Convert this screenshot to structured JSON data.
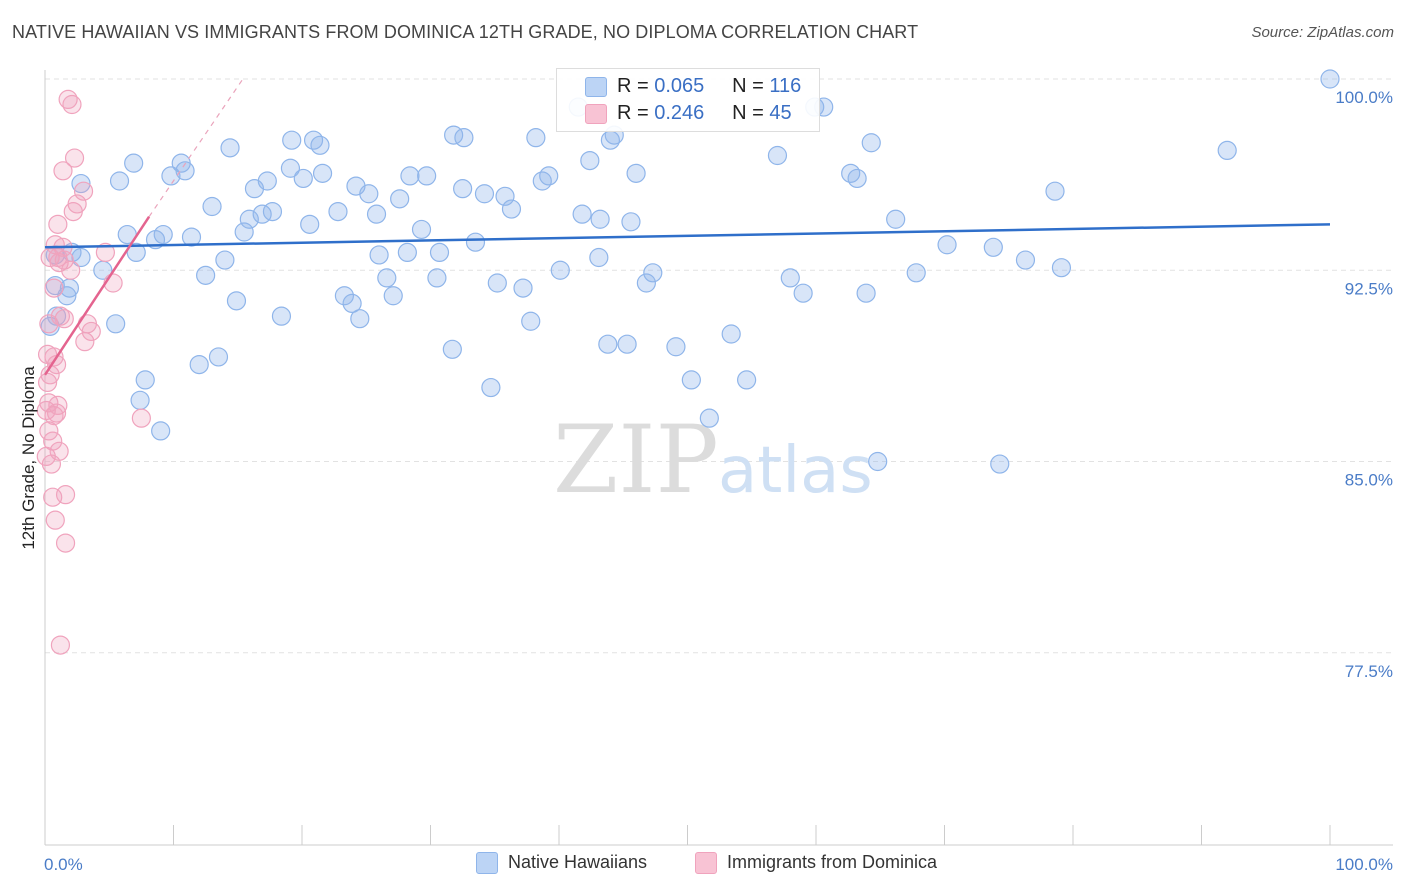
{
  "title": "NATIVE HAWAIIAN VS IMMIGRANTS FROM DOMINICA 12TH GRADE, NO DIPLOMA CORRELATION CHART",
  "source": "Source: ZipAtlas.com",
  "colors": {
    "blue": "#8fb5ea",
    "blue_line": "#2f6fca",
    "pink": "#f0a3bd",
    "pink_line": "#e4648f",
    "axis_text": "#4a7cc7"
  },
  "watermark": {
    "zip": "ZIP",
    "atlas": "atlas"
  },
  "legend": {
    "r_label": "R =",
    "n_label": "N =",
    "blue": {
      "r": "0.065",
      "n": "116"
    },
    "pink": {
      "r": "0.246",
      "n": "45"
    }
  },
  "bottom_legend": {
    "blue": "Native Hawaiians",
    "pink": "Immigrants from Dominica"
  },
  "chart_data": {
    "type": "scatter",
    "title": "NATIVE HAWAIIAN VS IMMIGRANTS FROM DOMINICA 12TH GRADE, NO DIPLOMA CORRELATION CHART",
    "xlabel": "",
    "ylabel": "12th Grade, No Diploma",
    "xlim": [
      0,
      100
    ],
    "ylim": [
      71,
      101
    ],
    "x_tick_labels": [
      "0.0%",
      "100.0%"
    ],
    "y_ticks": [
      100,
      92.5,
      85,
      77.5
    ],
    "y_tick_labels": [
      "100.0%",
      "92.5%",
      "85.0%",
      "77.5%"
    ],
    "grid": true,
    "series": [
      {
        "name": "Native Hawaiians",
        "r": 0.065,
        "n": 116,
        "trend": {
          "x": [
            0,
            100
          ],
          "y": [
            93.4,
            94.3
          ]
        },
        "points": [
          [
            0.4,
            90.3
          ],
          [
            0.8,
            93.1
          ],
          [
            0.8,
            91.9
          ],
          [
            0.9,
            90.7
          ],
          [
            1.7,
            91.5
          ],
          [
            1.9,
            91.8
          ],
          [
            2.1,
            93.2
          ],
          [
            2.8,
            95.9
          ],
          [
            2.8,
            93.0
          ],
          [
            4.5,
            92.5
          ],
          [
            5.5,
            90.4
          ],
          [
            5.8,
            96.0
          ],
          [
            6.4,
            93.9
          ],
          [
            6.9,
            96.7
          ],
          [
            7.1,
            93.2
          ],
          [
            7.4,
            87.4
          ],
          [
            7.8,
            88.2
          ],
          [
            8.6,
            93.7
          ],
          [
            9.0,
            86.2
          ],
          [
            9.2,
            93.9
          ],
          [
            9.8,
            96.2
          ],
          [
            10.6,
            96.7
          ],
          [
            10.9,
            96.4
          ],
          [
            11.4,
            93.8
          ],
          [
            12.0,
            88.8
          ],
          [
            12.5,
            92.3
          ],
          [
            13.0,
            95.0
          ],
          [
            13.5,
            89.1
          ],
          [
            14.0,
            92.9
          ],
          [
            14.4,
            97.3
          ],
          [
            14.9,
            91.3
          ],
          [
            15.5,
            94.0
          ],
          [
            15.9,
            94.5
          ],
          [
            16.3,
            95.7
          ],
          [
            16.9,
            94.7
          ],
          [
            17.3,
            96.0
          ],
          [
            17.7,
            94.8
          ],
          [
            18.4,
            90.7
          ],
          [
            19.1,
            96.5
          ],
          [
            19.2,
            97.6
          ],
          [
            20.1,
            96.1
          ],
          [
            20.6,
            94.3
          ],
          [
            20.9,
            97.6
          ],
          [
            21.4,
            97.4
          ],
          [
            21.6,
            96.3
          ],
          [
            22.8,
            94.8
          ],
          [
            23.3,
            91.5
          ],
          [
            23.9,
            91.2
          ],
          [
            24.2,
            95.8
          ],
          [
            24.5,
            90.6
          ],
          [
            25.2,
            95.5
          ],
          [
            25.8,
            94.7
          ],
          [
            26.0,
            93.1
          ],
          [
            26.6,
            92.2
          ],
          [
            27.1,
            91.5
          ],
          [
            27.6,
            95.3
          ],
          [
            28.2,
            93.2
          ],
          [
            28.4,
            96.2
          ],
          [
            29.3,
            94.1
          ],
          [
            29.7,
            96.2
          ],
          [
            30.5,
            92.2
          ],
          [
            30.7,
            93.2
          ],
          [
            31.7,
            89.4
          ],
          [
            31.8,
            97.8
          ],
          [
            32.5,
            95.7
          ],
          [
            32.6,
            97.7
          ],
          [
            33.5,
            93.6
          ],
          [
            34.2,
            95.5
          ],
          [
            34.7,
            87.9
          ],
          [
            35.2,
            92.0
          ],
          [
            35.8,
            95.4
          ],
          [
            36.3,
            94.9
          ],
          [
            37.2,
            91.8
          ],
          [
            37.8,
            90.5
          ],
          [
            38.2,
            97.7
          ],
          [
            38.7,
            96.0
          ],
          [
            39.2,
            96.2
          ],
          [
            40.1,
            92.5
          ],
          [
            41.5,
            98.9
          ],
          [
            41.8,
            94.7
          ],
          [
            42.4,
            96.8
          ],
          [
            43.1,
            93.0
          ],
          [
            43.2,
            94.5
          ],
          [
            43.8,
            89.6
          ],
          [
            44.0,
            97.6
          ],
          [
            44.3,
            97.8
          ],
          [
            45.3,
            89.6
          ],
          [
            45.6,
            94.4
          ],
          [
            46.0,
            96.3
          ],
          [
            46.8,
            92.0
          ],
          [
            47.3,
            92.4
          ],
          [
            49.1,
            89.5
          ],
          [
            50.3,
            88.2
          ],
          [
            51.7,
            86.7
          ],
          [
            53.4,
            90.0
          ],
          [
            54.6,
            88.2
          ],
          [
            57.0,
            97.0
          ],
          [
            58.0,
            92.2
          ],
          [
            59.0,
            91.6
          ],
          [
            59.9,
            98.9
          ],
          [
            60.6,
            98.9
          ],
          [
            62.7,
            96.3
          ],
          [
            63.2,
            96.1
          ],
          [
            63.9,
            91.6
          ],
          [
            64.3,
            97.5
          ],
          [
            64.8,
            85.0
          ],
          [
            66.2,
            94.5
          ],
          [
            67.8,
            92.4
          ],
          [
            70.2,
            93.5
          ],
          [
            73.8,
            93.4
          ],
          [
            74.3,
            84.9
          ],
          [
            76.3,
            92.9
          ],
          [
            78.6,
            95.6
          ],
          [
            79.1,
            92.6
          ],
          [
            92.0,
            97.2
          ],
          [
            100.0,
            100.0
          ]
        ]
      },
      {
        "name": "Immigrants from Dominica",
        "r": 0.246,
        "n": 45,
        "trend": {
          "x": [
            0,
            8.1
          ],
          "y": [
            88.4,
            94.6
          ]
        },
        "trend_dashed": {
          "x": [
            8.1,
            15.4
          ],
          "y": [
            94.6,
            100.0
          ]
        },
        "points": [
          [
            0.1,
            85.2
          ],
          [
            0.1,
            87.0
          ],
          [
            0.2,
            88.1
          ],
          [
            0.2,
            89.2
          ],
          [
            0.3,
            86.2
          ],
          [
            0.3,
            87.3
          ],
          [
            0.3,
            90.4
          ],
          [
            0.4,
            93.0
          ],
          [
            0.4,
            88.4
          ],
          [
            0.5,
            84.9
          ],
          [
            0.6,
            83.6
          ],
          [
            0.6,
            85.8
          ],
          [
            0.7,
            86.8
          ],
          [
            0.7,
            89.1
          ],
          [
            0.7,
            91.8
          ],
          [
            0.8,
            93.5
          ],
          [
            0.8,
            82.7
          ],
          [
            0.9,
            88.8
          ],
          [
            0.9,
            86.9
          ],
          [
            1.0,
            87.2
          ],
          [
            1.0,
            94.3
          ],
          [
            1.0,
            93.0
          ],
          [
            1.1,
            85.4
          ],
          [
            1.1,
            92.8
          ],
          [
            1.2,
            77.8
          ],
          [
            1.2,
            90.7
          ],
          [
            1.4,
            93.4
          ],
          [
            1.4,
            96.4
          ],
          [
            1.5,
            90.6
          ],
          [
            1.5,
            92.9
          ],
          [
            1.6,
            83.7
          ],
          [
            1.6,
            81.8
          ],
          [
            1.8,
            99.2
          ],
          [
            2.0,
            92.5
          ],
          [
            2.1,
            99.0
          ],
          [
            2.2,
            94.8
          ],
          [
            2.3,
            96.9
          ],
          [
            2.5,
            95.1
          ],
          [
            3.0,
            95.6
          ],
          [
            3.1,
            89.7
          ],
          [
            3.3,
            90.4
          ],
          [
            3.6,
            90.1
          ],
          [
            4.7,
            93.2
          ],
          [
            5.3,
            92.0
          ],
          [
            7.5,
            86.7
          ]
        ]
      }
    ]
  }
}
